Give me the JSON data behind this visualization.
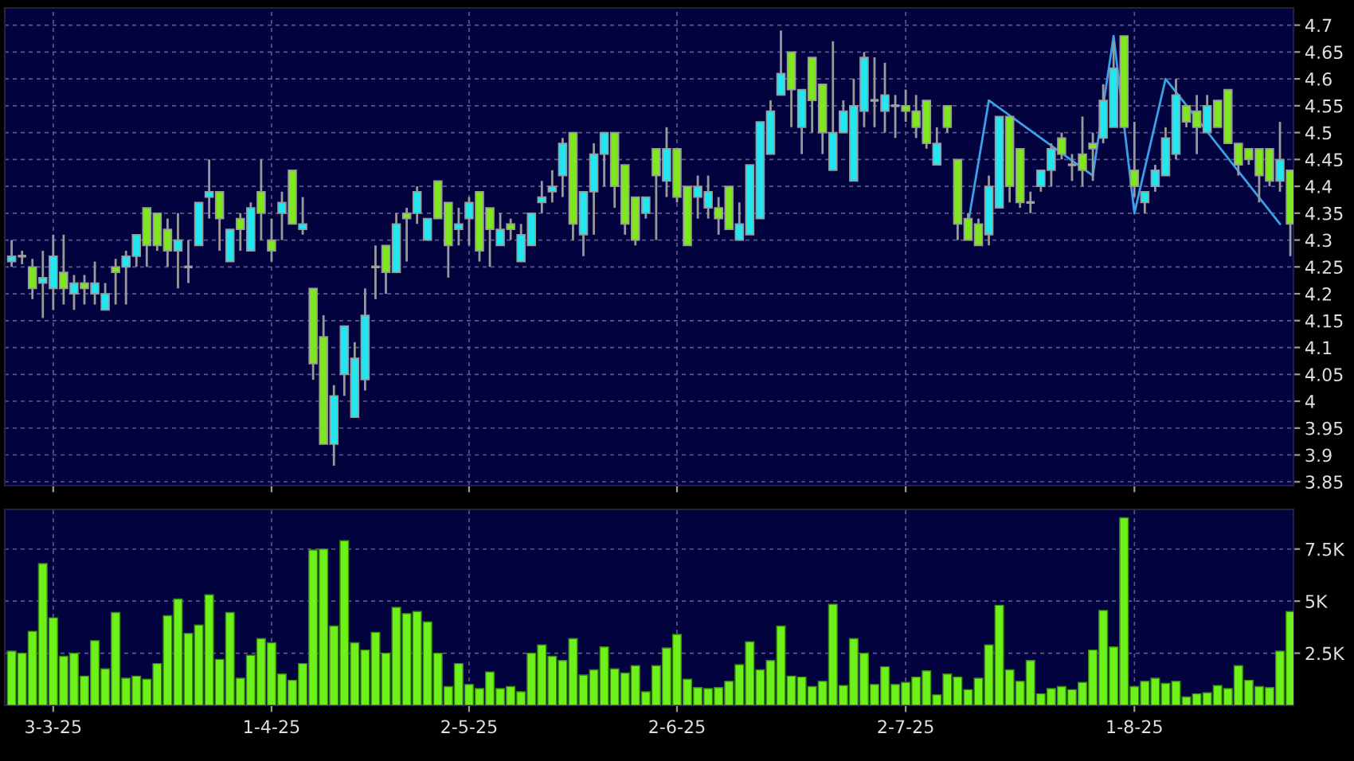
{
  "chart_data": [
    {
      "type": "candlestick",
      "categories": [
        null,
        null,
        null,
        null,
        null,
        null,
        null,
        null,
        null,
        null,
        null,
        null,
        null,
        null,
        null,
        null,
        null,
        null,
        null,
        null,
        null,
        null,
        null,
        null,
        null,
        null,
        null,
        null,
        null,
        null,
        null,
        null,
        null,
        null,
        null,
        null,
        null,
        null,
        null,
        null,
        null,
        null,
        null,
        null,
        null,
        null,
        null,
        null,
        null,
        null,
        null,
        null,
        null,
        null,
        null,
        null,
        null,
        null,
        null,
        null,
        null,
        null,
        null,
        null,
        null,
        null,
        null,
        null,
        null,
        null,
        null,
        null,
        null,
        null,
        null,
        null,
        null,
        null,
        null,
        null,
        null,
        null,
        null,
        null,
        null,
        null,
        null,
        null,
        null,
        null,
        null,
        null,
        null,
        null,
        null,
        null,
        null,
        null,
        null,
        null,
        null,
        null,
        null,
        null,
        null,
        null,
        null,
        null,
        null,
        null,
        null,
        null,
        null,
        null,
        null,
        null,
        null,
        null,
        null,
        null,
        null,
        null,
        null,
        null
      ],
      "ohlc": [
        [
          4.26,
          4.3,
          4.25,
          4.27
        ],
        [
          4.27,
          4.28,
          4.255,
          4.27
        ],
        [
          4.25,
          4.265,
          4.19,
          4.21
        ],
        [
          4.22,
          4.28,
          4.155,
          4.23
        ],
        [
          4.21,
          4.31,
          4.17,
          4.27
        ],
        [
          4.24,
          4.31,
          4.18,
          4.21
        ],
        [
          4.2,
          4.235,
          4.17,
          4.22
        ],
        [
          4.22,
          4.235,
          4.18,
          4.21
        ],
        [
          4.2,
          4.26,
          4.18,
          4.22
        ],
        [
          4.17,
          4.22,
          4.17,
          4.2
        ],
        [
          4.25,
          4.265,
          4.18,
          4.24
        ],
        [
          4.25,
          4.28,
          4.18,
          4.27
        ],
        [
          4.27,
          4.31,
          4.25,
          4.31
        ],
        [
          4.36,
          4.36,
          4.25,
          4.29
        ],
        [
          4.35,
          4.35,
          4.28,
          4.29
        ],
        [
          4.32,
          4.34,
          4.25,
          4.28
        ],
        [
          4.28,
          4.35,
          4.21,
          4.3
        ],
        [
          4.25,
          4.3,
          4.22,
          4.25
        ],
        [
          4.29,
          4.37,
          4.29,
          4.37
        ],
        [
          4.38,
          4.45,
          4.34,
          4.39
        ],
        [
          4.39,
          4.39,
          4.28,
          4.34
        ],
        [
          4.26,
          4.32,
          4.26,
          4.32
        ],
        [
          4.34,
          4.35,
          4.28,
          4.32
        ],
        [
          4.28,
          4.37,
          4.28,
          4.36
        ],
        [
          4.39,
          4.45,
          4.3,
          4.35
        ],
        [
          4.3,
          4.34,
          4.26,
          4.28
        ],
        [
          4.35,
          4.39,
          4.3,
          4.37
        ],
        [
          4.43,
          4.43,
          4.33,
          4.33
        ],
        [
          4.32,
          4.38,
          4.31,
          4.33
        ],
        [
          4.21,
          4.21,
          4.04,
          4.07
        ],
        [
          4.12,
          4.16,
          3.92,
          3.92
        ],
        [
          3.92,
          4.03,
          3.88,
          4.01
        ],
        [
          4.05,
          4.14,
          4.01,
          4.14
        ],
        [
          3.97,
          4.11,
          3.97,
          4.08
        ],
        [
          4.04,
          4.21,
          4.02,
          4.16
        ],
        [
          4.25,
          4.29,
          4.19,
          4.25
        ],
        [
          4.29,
          4.29,
          4.2,
          4.24
        ],
        [
          4.24,
          4.35,
          4.24,
          4.33
        ],
        [
          4.35,
          4.36,
          4.26,
          4.34
        ],
        [
          4.35,
          4.4,
          4.33,
          4.39
        ],
        [
          4.3,
          4.34,
          4.3,
          4.34
        ],
        [
          4.41,
          4.41,
          4.34,
          4.34
        ],
        [
          4.37,
          4.37,
          4.23,
          4.29
        ],
        [
          4.32,
          4.36,
          4.29,
          4.33
        ],
        [
          4.34,
          4.38,
          4.29,
          4.37
        ],
        [
          4.39,
          4.39,
          4.26,
          4.28
        ],
        [
          4.36,
          4.36,
          4.25,
          4.32
        ],
        [
          4.29,
          4.35,
          4.29,
          4.32
        ],
        [
          4.33,
          4.34,
          4.3,
          4.32
        ],
        [
          4.26,
          4.33,
          4.26,
          4.31
        ],
        [
          4.29,
          4.35,
          4.29,
          4.35
        ],
        [
          4.37,
          4.41,
          4.35,
          4.38
        ],
        [
          4.39,
          4.43,
          4.37,
          4.4
        ],
        [
          4.42,
          4.49,
          4.38,
          4.48
        ],
        [
          4.5,
          4.5,
          4.3,
          4.33
        ],
        [
          4.31,
          4.39,
          4.27,
          4.39
        ],
        [
          4.39,
          4.48,
          4.31,
          4.46
        ],
        [
          4.46,
          4.5,
          4.4,
          4.5
        ],
        [
          4.5,
          4.5,
          4.36,
          4.4
        ],
        [
          4.44,
          4.44,
          4.31,
          4.33
        ],
        [
          4.38,
          4.38,
          4.29,
          4.3
        ],
        [
          4.35,
          4.38,
          4.34,
          4.38
        ],
        [
          4.47,
          4.47,
          4.3,
          4.42
        ],
        [
          4.41,
          4.51,
          4.38,
          4.47
        ],
        [
          4.47,
          4.47,
          4.37,
          4.38
        ],
        [
          4.4,
          4.4,
          4.29,
          4.29
        ],
        [
          4.38,
          4.42,
          4.34,
          4.4
        ],
        [
          4.36,
          4.42,
          4.34,
          4.39
        ],
        [
          4.36,
          4.38,
          4.31,
          4.34
        ],
        [
          4.4,
          4.4,
          4.32,
          4.32
        ],
        [
          4.3,
          4.37,
          4.3,
          4.33
        ],
        [
          4.31,
          4.44,
          4.31,
          4.44
        ],
        [
          4.34,
          4.52,
          4.34,
          4.52
        ],
        [
          4.46,
          4.56,
          4.46,
          4.54
        ],
        [
          4.57,
          4.69,
          4.57,
          4.61
        ],
        [
          4.65,
          4.65,
          4.51,
          4.58
        ],
        [
          4.51,
          4.58,
          4.46,
          4.58
        ],
        [
          4.64,
          4.64,
          4.5,
          4.56
        ],
        [
          4.59,
          4.59,
          4.46,
          4.5
        ],
        [
          4.43,
          4.67,
          4.43,
          4.5
        ],
        [
          4.5,
          4.56,
          4.5,
          4.54
        ],
        [
          4.41,
          4.6,
          4.41,
          4.55
        ],
        [
          4.54,
          4.65,
          4.51,
          4.64
        ],
        [
          4.56,
          4.64,
          4.51,
          4.56
        ],
        [
          4.54,
          4.63,
          4.5,
          4.57
        ],
        [
          4.55,
          4.57,
          4.49,
          4.55
        ],
        [
          4.55,
          4.58,
          4.52,
          4.54
        ],
        [
          4.54,
          4.57,
          4.49,
          4.51
        ],
        [
          4.56,
          4.56,
          4.47,
          4.48
        ],
        [
          4.44,
          4.51,
          4.44,
          4.48
        ],
        [
          4.55,
          4.55,
          4.5,
          4.51
        ],
        [
          4.45,
          4.45,
          4.3,
          4.33
        ],
        [
          4.34,
          4.35,
          4.3,
          4.3
        ],
        [
          4.33,
          4.34,
          4.29,
          4.29
        ],
        [
          4.31,
          4.42,
          4.29,
          4.4
        ],
        [
          4.36,
          4.53,
          4.36,
          4.53
        ],
        [
          4.53,
          4.53,
          4.37,
          4.4
        ],
        [
          4.47,
          4.47,
          4.36,
          4.37
        ],
        [
          4.37,
          4.39,
          4.35,
          4.37
        ],
        [
          4.4,
          4.43,
          4.39,
          4.43
        ],
        [
          4.43,
          4.48,
          4.4,
          4.47
        ],
        [
          4.49,
          4.5,
          4.45,
          4.46
        ],
        [
          4.44,
          4.46,
          4.41,
          4.44
        ],
        [
          4.46,
          4.53,
          4.4,
          4.43
        ],
        [
          4.48,
          4.5,
          4.41,
          4.47
        ],
        [
          4.49,
          4.59,
          4.48,
          4.56
        ],
        [
          4.51,
          4.67,
          4.51,
          4.62
        ],
        [
          4.68,
          4.68,
          4.51,
          4.51
        ],
        [
          4.43,
          4.52,
          4.38,
          4.4
        ],
        [
          4.37,
          4.39,
          4.35,
          4.39
        ],
        [
          4.4,
          4.44,
          4.39,
          4.43
        ],
        [
          4.42,
          4.51,
          4.42,
          4.49
        ],
        [
          4.46,
          4.6,
          4.45,
          4.57
        ],
        [
          4.55,
          4.55,
          4.51,
          4.52
        ],
        [
          4.54,
          4.57,
          4.46,
          4.51
        ],
        [
          4.5,
          4.57,
          4.5,
          4.55
        ],
        [
          4.56,
          4.56,
          4.51,
          4.51
        ],
        [
          4.58,
          4.58,
          4.48,
          4.48
        ],
        [
          4.48,
          4.48,
          4.42,
          4.44
        ],
        [
          4.47,
          4.47,
          4.44,
          4.45
        ],
        [
          4.47,
          4.47,
          4.37,
          4.42
        ],
        [
          4.47,
          4.47,
          4.4,
          4.41
        ],
        [
          4.41,
          4.52,
          4.39,
          4.45
        ],
        [
          4.43,
          4.43,
          4.27,
          4.33
        ]
      ],
      "colors": [
        "#22e6f0",
        "#a0a0a0",
        "#80e620",
        "#22e6f0",
        "#22e6f0",
        "#80e620",
        "#22e6f0",
        "#80e620",
        "#22e6f0",
        "#22e6f0",
        "#80e620",
        "#22e6f0",
        "#22e6f0",
        "#80e620",
        "#80e620",
        "#80e620",
        "#22e6f0",
        "#a0a0a0",
        "#22e6f0",
        "#22e6f0",
        "#80e620",
        "#22e6f0",
        "#80e620",
        "#22e6f0",
        "#80e620",
        "#80e620",
        "#22e6f0",
        "#80e620",
        "#22e6f0",
        "#80e620",
        "#80e620",
        "#22e6f0",
        "#22e6f0",
        "#22e6f0",
        "#22e6f0",
        "#a0a0a0",
        "#80e620",
        "#22e6f0",
        "#80e620",
        "#22e6f0",
        "#22e6f0",
        "#80e620",
        "#80e620",
        "#22e6f0",
        "#22e6f0",
        "#80e620",
        "#80e620",
        "#22e6f0",
        "#80e620",
        "#22e6f0",
        "#22e6f0",
        "#22e6f0",
        "#22e6f0",
        "#22e6f0",
        "#80e620",
        "#22e6f0",
        "#22e6f0",
        "#22e6f0",
        "#80e620",
        "#80e620",
        "#80e620",
        "#22e6f0",
        "#80e620",
        "#22e6f0",
        "#80e620",
        "#80e620",
        "#22e6f0",
        "#22e6f0",
        "#80e620",
        "#80e620",
        "#22e6f0",
        "#22e6f0",
        "#22e6f0",
        "#22e6f0",
        "#22e6f0",
        "#80e620",
        "#22e6f0",
        "#80e620",
        "#80e620",
        "#22e6f0",
        "#22e6f0",
        "#22e6f0",
        "#22e6f0",
        "#a0a0a0",
        "#22e6f0",
        "#a0a0a0",
        "#80e620",
        "#80e620",
        "#80e620",
        "#22e6f0",
        "#80e620",
        "#80e620",
        "#80e620",
        "#80e620",
        "#22e6f0",
        "#22e6f0",
        "#80e620",
        "#80e620",
        "#a0a0a0",
        "#22e6f0",
        "#22e6f0",
        "#80e620",
        "#a0a0a0",
        "#80e620",
        "#80e620",
        "#22e6f0",
        "#22e6f0",
        "#80e620",
        "#80e620",
        "#22e6f0",
        "#22e6f0",
        "#22e6f0",
        "#22e6f0",
        "#80e620",
        "#80e620",
        "#22e6f0",
        "#80e620",
        "#80e620",
        "#80e620",
        "#80e620",
        "#80e620",
        "#80e620",
        "#22e6f0",
        "#80e620"
      ],
      "series": [
        {
          "type": "line",
          "color": "#3aa0e8",
          "values": [
            null,
            null,
            null,
            null,
            null,
            null,
            null,
            null,
            null,
            null,
            null,
            null,
            null,
            null,
            null,
            null,
            null,
            null,
            null,
            null,
            null,
            null,
            null,
            null,
            null,
            null,
            null,
            null,
            null,
            null,
            null,
            null,
            null,
            null,
            null,
            null,
            null,
            null,
            null,
            null,
            null,
            null,
            null,
            null,
            null,
            null,
            null,
            null,
            null,
            null,
            null,
            null,
            null,
            null,
            null,
            null,
            null,
            null,
            null,
            null,
            null,
            null,
            null,
            null,
            null,
            null,
            null,
            null,
            null,
            null,
            null,
            null,
            null,
            null,
            null,
            null,
            null,
            null,
            null,
            null,
            null,
            null,
            null,
            null,
            null,
            null,
            null,
            null,
            null,
            null,
            null,
            null,
            4.33,
            null,
            4.56,
            null,
            null,
            null,
            null,
            null,
            null,
            null,
            null,
            null,
            4.42,
            null,
            4.68,
            null,
            4.35,
            null,
            null,
            4.6,
            null,
            null,
            null,
            null,
            null,
            null,
            null,
            null,
            null,
            null,
            4.33,
            null
          ]
        }
      ],
      "ylim": [
        3.843,
        4.732
      ],
      "yticks": [
        3.85,
        3.9,
        3.95,
        4,
        4.05,
        4.1,
        4.15,
        4.2,
        4.25,
        4.3,
        4.35,
        4.4,
        4.45,
        4.5,
        4.55,
        4.6,
        4.65,
        4.7
      ],
      "grid": true,
      "tick_labels": "y"
    },
    {
      "type": "bar",
      "categories": [
        null,
        null,
        null,
        null,
        "3-3-25",
        null,
        null,
        null,
        null,
        null,
        null,
        null,
        null,
        null,
        null,
        null,
        null,
        null,
        null,
        null,
        null,
        null,
        null,
        null,
        null,
        "1-4-25",
        null,
        null,
        null,
        null,
        null,
        null,
        null,
        null,
        null,
        null,
        null,
        null,
        null,
        null,
        null,
        null,
        null,
        null,
        "2-5-25",
        null,
        null,
        null,
        null,
        null,
        null,
        null,
        null,
        null,
        null,
        null,
        null,
        null,
        null,
        null,
        null,
        null,
        null,
        null,
        "2-6-25",
        null,
        null,
        null,
        null,
        null,
        null,
        null,
        null,
        null,
        null,
        null,
        null,
        null,
        null,
        null,
        null,
        null,
        null,
        null,
        null,
        null,
        "2-7-25",
        null,
        null,
        null,
        null,
        null,
        null,
        null,
        null,
        null,
        null,
        null,
        null,
        null,
        null,
        null,
        null,
        null,
        null,
        null,
        null,
        null,
        "1-8-25",
        null,
        null,
        null,
        null,
        null,
        null,
        null,
        null,
        null,
        null,
        null,
        null,
        null,
        null,
        null
      ],
      "values": [
        2600,
        2500,
        3550,
        6800,
        4200,
        2350,
        2500,
        1400,
        3100,
        1750,
        4450,
        1300,
        1400,
        1250,
        2000,
        4300,
        5100,
        3450,
        3850,
        5300,
        2200,
        4450,
        1300,
        2400,
        3200,
        3000,
        1500,
        1200,
        2000,
        7450,
        7500,
        3800,
        7900,
        3000,
        2650,
        3500,
        2500,
        4700,
        4400,
        4500,
        4000,
        2500,
        900,
        2000,
        1000,
        800,
        1600,
        800,
        900,
        650,
        2500,
        2900,
        2350,
        2150,
        3200,
        1450,
        1700,
        2800,
        1750,
        1550,
        1900,
        650,
        1900,
        2750,
        3400,
        1250,
        850,
        800,
        850,
        1150,
        1950,
        3050,
        1700,
        2150,
        3800,
        1400,
        1350,
        900,
        1150,
        4850,
        950,
        3200,
        2500,
        1000,
        1850,
        1000,
        1100,
        1350,
        1650,
        500,
        1500,
        1350,
        750,
        1300,
        2900,
        4800,
        1700,
        1150,
        2150,
        550,
        800,
        900,
        750,
        1100,
        2650,
        4550,
        2800,
        9000,
        900,
        1150,
        1300,
        1050,
        1150,
        400,
        550,
        600,
        950,
        800,
        1900,
        1200,
        900,
        850,
        2600,
        4500
      ],
      "color": "#6ef01a",
      "ylim": [
        0,
        9400
      ],
      "yticks": [
        {
          "value": 2500,
          "label": "2.5K"
        },
        {
          "value": 5000,
          "label": "5K"
        },
        {
          "value": 7500,
          "label": "7.5K"
        }
      ],
      "grid": true
    }
  ]
}
